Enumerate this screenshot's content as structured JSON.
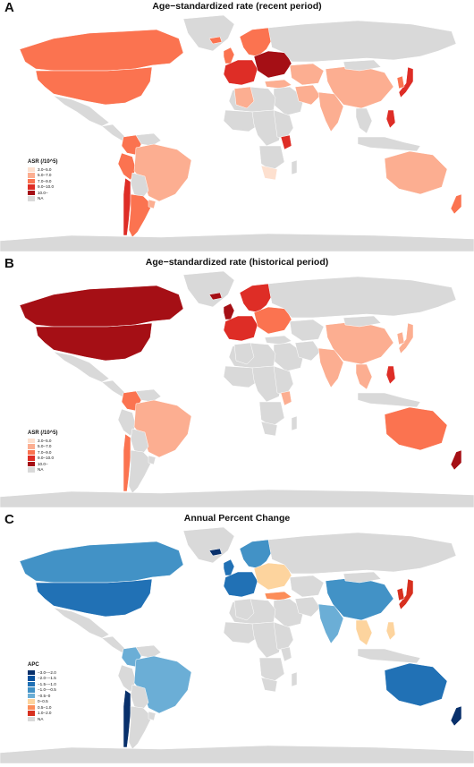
{
  "panels": [
    {
      "letter": "A",
      "title": "Age−standardized rate (recent period)",
      "legend": {
        "title": "ASR (/10^5)",
        "items": [
          {
            "label": "3.0−5.0",
            "color": "#fde0cf"
          },
          {
            "label": "5.0−7.0",
            "color": "#fcae91"
          },
          {
            "label": "7.0−9.0",
            "color": "#fb7350"
          },
          {
            "label": "9.0−10.0",
            "color": "#de2d26"
          },
          {
            "label": "10.0−",
            "color": "#a50f15"
          },
          {
            "label": "NA",
            "color": "#d9d9d9"
          }
        ]
      },
      "regions": [
        {
          "name": "canada",
          "color": "#fb7350"
        },
        {
          "name": "usa",
          "color": "#fb7350"
        },
        {
          "name": "mexico",
          "color": "#d9d9d9"
        },
        {
          "name": "central-america",
          "color": "#d9d9d9"
        },
        {
          "name": "colombia",
          "color": "#fb7350"
        },
        {
          "name": "venezuela",
          "color": "#d9d9d9"
        },
        {
          "name": "peru",
          "color": "#fb7350"
        },
        {
          "name": "brazil",
          "color": "#fcae91"
        },
        {
          "name": "bolivia-paraguay",
          "color": "#d9d9d9"
        },
        {
          "name": "chile",
          "color": "#de2d26"
        },
        {
          "name": "argentina",
          "color": "#fb7350"
        },
        {
          "name": "uruguay",
          "color": "#fcae91"
        },
        {
          "name": "greenland",
          "color": "#d9d9d9"
        },
        {
          "name": "iceland",
          "color": "#fb7350"
        },
        {
          "name": "uk",
          "color": "#fb7350"
        },
        {
          "name": "scandinavia",
          "color": "#fb7350"
        },
        {
          "name": "western-europe",
          "color": "#de2d26"
        },
        {
          "name": "eastern-europe",
          "color": "#a50f15"
        },
        {
          "name": "russia",
          "color": "#d9d9d9"
        },
        {
          "name": "turkey",
          "color": "#fcae91"
        },
        {
          "name": "middle-east",
          "color": "#d9d9d9"
        },
        {
          "name": "north-africa",
          "color": "#d9d9d9"
        },
        {
          "name": "algeria",
          "color": "#fcae91"
        },
        {
          "name": "west-africa",
          "color": "#d9d9d9"
        },
        {
          "name": "central-africa",
          "color": "#d9d9d9"
        },
        {
          "name": "east-africa",
          "color": "#d9d9d9"
        },
        {
          "name": "kenya",
          "color": "#de2d26"
        },
        {
          "name": "southern-africa",
          "color": "#d9d9d9"
        },
        {
          "name": "south-africa",
          "color": "#fde0cf"
        },
        {
          "name": "madagascar",
          "color": "#d9d9d9"
        },
        {
          "name": "central-asia",
          "color": "#fcae91"
        },
        {
          "name": "iran",
          "color": "#fcae91"
        },
        {
          "name": "india",
          "color": "#fcae91"
        },
        {
          "name": "china",
          "color": "#fcae91"
        },
        {
          "name": "mongolia",
          "color": "#d9d9d9"
        },
        {
          "name": "southeast-asia",
          "color": "#d9d9d9"
        },
        {
          "name": "japan",
          "color": "#de2d26"
        },
        {
          "name": "korea",
          "color": "#fb7350"
        },
        {
          "name": "philippines",
          "color": "#de2d26"
        },
        {
          "name": "indonesia",
          "color": "#d9d9d9"
        },
        {
          "name": "australia",
          "color": "#fcae91"
        },
        {
          "name": "new-zealand",
          "color": "#fb7350"
        },
        {
          "name": "antarctica",
          "color": "#d9d9d9"
        }
      ]
    },
    {
      "letter": "B",
      "title": "Age−standardized rate (historical period)",
      "legend": {
        "title": "ASR (/10^5)",
        "items": [
          {
            "label": "3.0−5.0",
            "color": "#fde0cf"
          },
          {
            "label": "5.0−7.0",
            "color": "#fcae91"
          },
          {
            "label": "7.0−9.0",
            "color": "#fb7350"
          },
          {
            "label": "9.0−10.0",
            "color": "#de2d26"
          },
          {
            "label": "10.0−",
            "color": "#a50f15"
          },
          {
            "label": "NA",
            "color": "#d9d9d9"
          }
        ]
      },
      "regions": [
        {
          "name": "canada",
          "color": "#a50f15"
        },
        {
          "name": "usa",
          "color": "#a50f15"
        },
        {
          "name": "mexico",
          "color": "#d9d9d9"
        },
        {
          "name": "central-america",
          "color": "#d9d9d9"
        },
        {
          "name": "colombia",
          "color": "#fb7350"
        },
        {
          "name": "venezuela",
          "color": "#d9d9d9"
        },
        {
          "name": "peru",
          "color": "#d9d9d9"
        },
        {
          "name": "brazil",
          "color": "#fcae91"
        },
        {
          "name": "bolivia-paraguay",
          "color": "#d9d9d9"
        },
        {
          "name": "chile",
          "color": "#fb7350"
        },
        {
          "name": "argentina",
          "color": "#d9d9d9"
        },
        {
          "name": "uruguay",
          "color": "#d9d9d9"
        },
        {
          "name": "greenland",
          "color": "#d9d9d9"
        },
        {
          "name": "iceland",
          "color": "#a50f15"
        },
        {
          "name": "uk",
          "color": "#a50f15"
        },
        {
          "name": "scandinavia",
          "color": "#de2d26"
        },
        {
          "name": "western-europe",
          "color": "#de2d26"
        },
        {
          "name": "eastern-europe",
          "color": "#fb7350"
        },
        {
          "name": "russia",
          "color": "#d9d9d9"
        },
        {
          "name": "turkey",
          "color": "#d9d9d9"
        },
        {
          "name": "middle-east",
          "color": "#d9d9d9"
        },
        {
          "name": "north-africa",
          "color": "#d9d9d9"
        },
        {
          "name": "algeria",
          "color": "#d9d9d9"
        },
        {
          "name": "west-africa",
          "color": "#d9d9d9"
        },
        {
          "name": "central-africa",
          "color": "#d9d9d9"
        },
        {
          "name": "east-africa",
          "color": "#d9d9d9"
        },
        {
          "name": "kenya",
          "color": "#fcae91"
        },
        {
          "name": "southern-africa",
          "color": "#d9d9d9"
        },
        {
          "name": "south-africa",
          "color": "#d9d9d9"
        },
        {
          "name": "madagascar",
          "color": "#d9d9d9"
        },
        {
          "name": "central-asia",
          "color": "#d9d9d9"
        },
        {
          "name": "iran",
          "color": "#d9d9d9"
        },
        {
          "name": "india",
          "color": "#fcae91"
        },
        {
          "name": "china",
          "color": "#fcae91"
        },
        {
          "name": "mongolia",
          "color": "#d9d9d9"
        },
        {
          "name": "southeast-asia",
          "color": "#fcae91"
        },
        {
          "name": "japan",
          "color": "#fcae91"
        },
        {
          "name": "korea",
          "color": "#fcae91"
        },
        {
          "name": "philippines",
          "color": "#de2d26"
        },
        {
          "name": "indonesia",
          "color": "#d9d9d9"
        },
        {
          "name": "australia",
          "color": "#fb7350"
        },
        {
          "name": "new-zealand",
          "color": "#a50f15"
        },
        {
          "name": "antarctica",
          "color": "#d9d9d9"
        }
      ]
    },
    {
      "letter": "C",
      "title": "Annual Percent Change",
      "legend": {
        "title": "APC",
        "items": [
          {
            "label": "−3.0−−2.0",
            "color": "#08306b"
          },
          {
            "label": "−2.0−−1.5",
            "color": "#08519c"
          },
          {
            "label": "−1.5−−1.0",
            "color": "#2171b5"
          },
          {
            "label": "−1.0−−0.5",
            "color": "#4292c6"
          },
          {
            "label": "−0.5−0",
            "color": "#6baed6"
          },
          {
            "label": "0−0.5",
            "color": "#fdd49e"
          },
          {
            "label": "0.5−1.0",
            "color": "#fc8d59"
          },
          {
            "label": "1.0−2.0",
            "color": "#d7301f"
          },
          {
            "label": "NA",
            "color": "#d9d9d9"
          }
        ]
      },
      "regions": [
        {
          "name": "canada",
          "color": "#4292c6"
        },
        {
          "name": "usa",
          "color": "#2171b5"
        },
        {
          "name": "mexico",
          "color": "#d9d9d9"
        },
        {
          "name": "central-america",
          "color": "#d9d9d9"
        },
        {
          "name": "colombia",
          "color": "#6baed6"
        },
        {
          "name": "venezuela",
          "color": "#d9d9d9"
        },
        {
          "name": "peru",
          "color": "#d9d9d9"
        },
        {
          "name": "brazil",
          "color": "#6baed6"
        },
        {
          "name": "bolivia-paraguay",
          "color": "#d9d9d9"
        },
        {
          "name": "chile",
          "color": "#08306b"
        },
        {
          "name": "argentina",
          "color": "#d9d9d9"
        },
        {
          "name": "uruguay",
          "color": "#d9d9d9"
        },
        {
          "name": "greenland",
          "color": "#d9d9d9"
        },
        {
          "name": "iceland",
          "color": "#08306b"
        },
        {
          "name": "uk",
          "color": "#2171b5"
        },
        {
          "name": "scandinavia",
          "color": "#4292c6"
        },
        {
          "name": "western-europe",
          "color": "#2171b5"
        },
        {
          "name": "eastern-europe",
          "color": "#fdd49e"
        },
        {
          "name": "russia",
          "color": "#d9d9d9"
        },
        {
          "name": "turkey",
          "color": "#fc8d59"
        },
        {
          "name": "middle-east",
          "color": "#d9d9d9"
        },
        {
          "name": "north-africa",
          "color": "#d9d9d9"
        },
        {
          "name": "algeria",
          "color": "#d9d9d9"
        },
        {
          "name": "west-africa",
          "color": "#d9d9d9"
        },
        {
          "name": "central-africa",
          "color": "#d9d9d9"
        },
        {
          "name": "east-africa",
          "color": "#d9d9d9"
        },
        {
          "name": "kenya",
          "color": "#d9d9d9"
        },
        {
          "name": "southern-africa",
          "color": "#d9d9d9"
        },
        {
          "name": "south-africa",
          "color": "#d9d9d9"
        },
        {
          "name": "madagascar",
          "color": "#d9d9d9"
        },
        {
          "name": "central-asia",
          "color": "#d9d9d9"
        },
        {
          "name": "iran",
          "color": "#d9d9d9"
        },
        {
          "name": "india",
          "color": "#6baed6"
        },
        {
          "name": "china",
          "color": "#4292c6"
        },
        {
          "name": "mongolia",
          "color": "#d9d9d9"
        },
        {
          "name": "southeast-asia",
          "color": "#fdd49e"
        },
        {
          "name": "japan",
          "color": "#d7301f"
        },
        {
          "name": "korea",
          "color": "#d7301f"
        },
        {
          "name": "philippines",
          "color": "#fdd49e"
        },
        {
          "name": "indonesia",
          "color": "#d9d9d9"
        },
        {
          "name": "australia",
          "color": "#2171b5"
        },
        {
          "name": "new-zealand",
          "color": "#08306b"
        },
        {
          "name": "antarctica",
          "color": "#d9d9d9"
        }
      ]
    }
  ]
}
